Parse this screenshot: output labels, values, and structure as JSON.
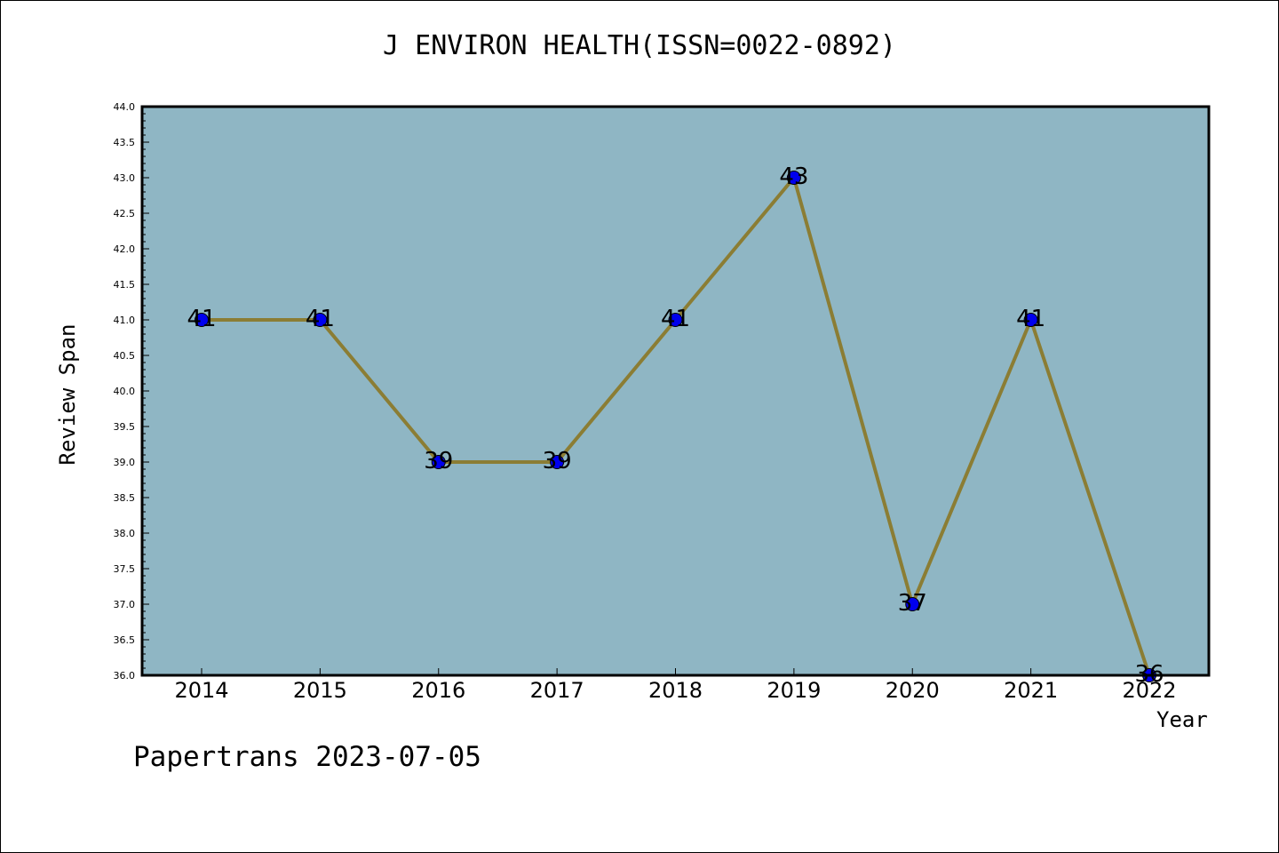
{
  "chart_data": {
    "type": "line",
    "title": "J ENVIRON HEALTH(ISSN=0022-0892)",
    "xlabel": "Year",
    "ylabel": "Review Span",
    "categories": [
      "2014",
      "2015",
      "2016",
      "2017",
      "2018",
      "2019",
      "2020",
      "2021",
      "2022"
    ],
    "series": [
      {
        "values": [
          41,
          41,
          39,
          39,
          41,
          43,
          37,
          41,
          36
        ]
      }
    ],
    "ylim": [
      36.0,
      44.0
    ],
    "y_ticks": [
      "36.0",
      "36.5",
      "37.0",
      "37.5",
      "38.0",
      "38.5",
      "39.0",
      "39.5",
      "40.0",
      "40.5",
      "41.0",
      "41.5",
      "42.0",
      "42.5",
      "43.0",
      "43.5",
      "44.0"
    ],
    "data_labels": [
      "41",
      "41",
      "39",
      "39",
      "41",
      "43",
      "37",
      "41",
      "36"
    ],
    "grid": false,
    "colors": {
      "plot_background": "#8fb6c4",
      "line": "#8b7d34",
      "marker": "#0000ee"
    }
  },
  "footer": "Papertrans 2023-07-05"
}
